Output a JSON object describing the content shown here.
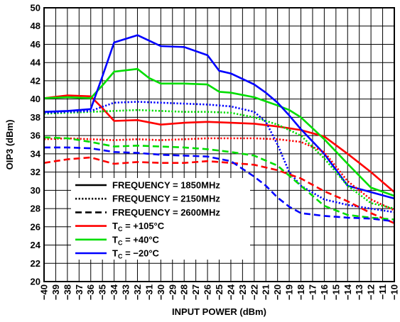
{
  "chart_data": {
    "type": "line",
    "title": "",
    "xlabel": "INPUT POWER (dBm)",
    "ylabel": "OIP3 (dBm)",
    "xlim": [
      -40,
      -10
    ],
    "ylim": [
      20,
      50
    ],
    "xticks": [
      "-40",
      "-39",
      "-38",
      "-37",
      "-36",
      "-35",
      "-34",
      "-33",
      "-32",
      "-31",
      "-30",
      "-29",
      "-28",
      "-27",
      "-26",
      "-25",
      "-24",
      "-23",
      "-22",
      "-21",
      "-20",
      "-19",
      "-18",
      "-17",
      "-16",
      "-15",
      "-14",
      "-13",
      "-12",
      "-11",
      "-10"
    ],
    "yticks": [
      "20",
      "22",
      "24",
      "26",
      "28",
      "30",
      "32",
      "34",
      "36",
      "38",
      "40",
      "42",
      "44",
      "46",
      "48",
      "50"
    ],
    "grid": true,
    "legend_position": "bottom-left",
    "legend": [
      {
        "kind": "style",
        "style": "solid",
        "label": "FREQUENCY = 1850MHz"
      },
      {
        "kind": "style",
        "style": "dotted",
        "label": "FREQUENCY = 2150MHz"
      },
      {
        "kind": "style",
        "style": "dashed",
        "label": "FREQUENCY = 2600MHz"
      },
      {
        "kind": "color",
        "color": "#ff0000",
        "main": "T",
        "sub": "C",
        "rest": " = +105°C"
      },
      {
        "kind": "color",
        "color": "#00dd00",
        "main": "T",
        "sub": "C",
        "rest": " = +40°C"
      },
      {
        "kind": "color",
        "color": "#0000ff",
        "main": "T",
        "sub": "C",
        "rest": " = −20°C"
      }
    ],
    "series": [
      {
        "color": "#ff0000",
        "style": "solid",
        "x": [
          -40,
          -38,
          -36,
          -35,
          -34,
          -32,
          -30,
          -28,
          -26,
          -24,
          -22,
          -20,
          -18,
          -16,
          -14,
          -12,
          -10
        ],
        "y": [
          40.1,
          40.4,
          40.3,
          39.0,
          37.6,
          37.7,
          37.2,
          37.4,
          37.5,
          37.4,
          37.3,
          37.0,
          36.6,
          35.9,
          34.0,
          32.0,
          29.8
        ]
      },
      {
        "color": "#00dd00",
        "style": "solid",
        "x": [
          -40,
          -38,
          -36,
          -35,
          -34,
          -32,
          -31,
          -30,
          -28,
          -26,
          -25,
          -24,
          -22,
          -20,
          -19,
          -18,
          -16,
          -14,
          -12,
          -10
        ],
        "y": [
          40.1,
          40.2,
          40.1,
          41.5,
          43.0,
          43.3,
          42.3,
          41.7,
          41.7,
          41.6,
          40.8,
          40.7,
          40.2,
          39.3,
          38.8,
          38.0,
          35.6,
          32.9,
          30.3,
          29.4
        ]
      },
      {
        "color": "#0000ff",
        "style": "solid",
        "x": [
          -40,
          -38,
          -36,
          -35,
          -34,
          -32,
          -31,
          -30,
          -28,
          -26,
          -25,
          -24,
          -22,
          -21,
          -20,
          -19,
          -18,
          -16,
          -14,
          -12,
          -10
        ],
        "y": [
          38.6,
          38.7,
          38.9,
          42.5,
          46.2,
          47.0,
          46.4,
          45.8,
          45.7,
          44.8,
          43.1,
          42.8,
          41.6,
          40.7,
          39.6,
          38.2,
          36.7,
          34.0,
          30.5,
          29.8,
          29.1
        ]
      },
      {
        "color": "#ff0000",
        "style": "dotted",
        "x": [
          -40,
          -38,
          -36,
          -34,
          -32,
          -30,
          -28,
          -26,
          -24,
          -22,
          -20,
          -18,
          -16,
          -14,
          -12,
          -10
        ],
        "y": [
          35.6,
          35.7,
          35.6,
          35.5,
          35.6,
          35.5,
          35.6,
          35.7,
          35.7,
          35.7,
          35.6,
          35.3,
          34.2,
          31.0,
          29.0,
          27.8
        ]
      },
      {
        "color": "#00dd00",
        "style": "dotted",
        "x": [
          -40,
          -38,
          -36,
          -34,
          -32,
          -30,
          -28,
          -26,
          -24,
          -22,
          -20,
          -18,
          -16,
          -14,
          -12,
          -10
        ],
        "y": [
          38.4,
          38.5,
          38.6,
          38.7,
          38.8,
          38.7,
          38.6,
          38.6,
          38.5,
          38.0,
          37.2,
          36.0,
          33.5,
          30.5,
          28.6,
          28.0
        ]
      },
      {
        "color": "#0000ff",
        "style": "dotted",
        "x": [
          -40,
          -38,
          -36,
          -34,
          -32,
          -30,
          -28,
          -26,
          -24,
          -22,
          -21,
          -20,
          -19,
          -18,
          -16,
          -14,
          -12,
          -10
        ],
        "y": [
          38.5,
          38.6,
          38.7,
          39.6,
          39.7,
          39.6,
          39.5,
          39.4,
          39.2,
          38.6,
          37.5,
          35.0,
          32.0,
          30.5,
          29.0,
          28.4,
          28.0,
          27.6
        ]
      },
      {
        "color": "#ff0000",
        "style": "dashed",
        "x": [
          -40,
          -38,
          -36,
          -34,
          -32,
          -30,
          -28,
          -26,
          -24,
          -22,
          -20,
          -18,
          -16,
          -14,
          -12,
          -10
        ],
        "y": [
          33.0,
          33.4,
          33.6,
          32.9,
          33.1,
          33.0,
          33.0,
          33.2,
          33.0,
          32.8,
          32.2,
          31.3,
          29.9,
          28.8,
          27.5,
          26.4
        ]
      },
      {
        "color": "#00dd00",
        "style": "dashed",
        "x": [
          -40,
          -38,
          -36,
          -34,
          -32,
          -30,
          -28,
          -26,
          -24,
          -22,
          -20,
          -18,
          -16,
          -14,
          -12,
          -10
        ],
        "y": [
          35.8,
          35.7,
          35.3,
          34.8,
          34.9,
          34.8,
          34.7,
          34.5,
          34.2,
          33.8,
          32.7,
          30.5,
          28.3,
          27.3,
          27.0,
          26.8
        ]
      },
      {
        "color": "#0000ff",
        "style": "dashed",
        "x": [
          -40,
          -38,
          -36,
          -34,
          -32,
          -30,
          -28,
          -26,
          -24,
          -22,
          -21,
          -20,
          -19,
          -18,
          -16,
          -14,
          -12,
          -10
        ],
        "y": [
          34.7,
          34.7,
          34.6,
          34.2,
          34.1,
          33.9,
          33.8,
          33.7,
          33.2,
          31.5,
          30.5,
          29.2,
          28.2,
          27.5,
          27.2,
          27.0,
          26.9,
          26.6
        ]
      }
    ]
  }
}
